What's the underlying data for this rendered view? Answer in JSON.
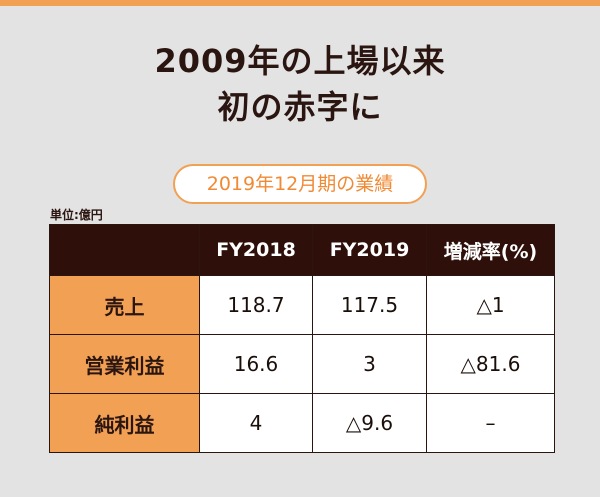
{
  "headline": {
    "line1": "2009年の上場以来",
    "line2": "初の赤字に"
  },
  "subtitle": "2019年12月期の業績",
  "unit": "単位:億円",
  "table": {
    "headers": [
      "",
      "FY2018",
      "FY2019",
      "増減率(%)"
    ],
    "rows": [
      {
        "label": "売上",
        "fy2018": "118.7",
        "fy2019": "117.5",
        "change": "△1"
      },
      {
        "label": "営業利益",
        "fy2018": "16.6",
        "fy2019": "3",
        "change": "△81.6"
      },
      {
        "label": "純利益",
        "fy2018": "4",
        "fy2019": "△9.6",
        "change": "–"
      }
    ]
  },
  "colors": {
    "accent": "#f2a053",
    "header_bg": "#2e0f0a",
    "background": "#e3e3e3"
  }
}
